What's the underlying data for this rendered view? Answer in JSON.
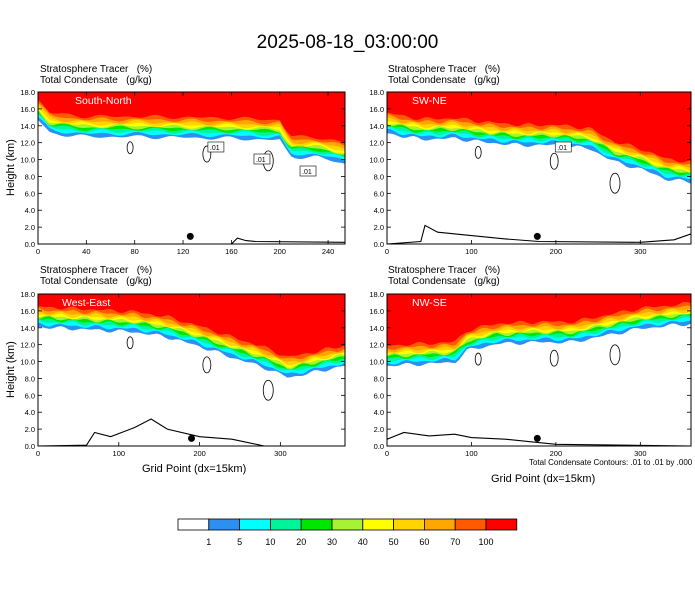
{
  "title": "2025-08-18_03:00:00",
  "colors": {
    "levels": [
      "#ffffff",
      "#2d8ff0",
      "#00ffff",
      "#00f59a",
      "#00e600",
      "#a7f232",
      "#ffff00",
      "#ffd400",
      "#ffa600",
      "#ff5a00",
      "#ff0000"
    ],
    "contour": "#000000"
  },
  "colorbar": {
    "labels": [
      "1",
      "5",
      "10",
      "20",
      "30",
      "40",
      "50",
      "60",
      "70",
      "100"
    ]
  },
  "footnote": "Total Condensate Contours: .01 to .01 by .000",
  "chart_data": [
    {
      "type": "heatmap",
      "name": "South-North",
      "label": "South-North",
      "header": [
        "Stratosphere Tracer   (%)",
        "Total Condensate   (g/kg)"
      ],
      "ylabel": "Height (km)",
      "xlabel": "",
      "xlim": [
        0,
        254
      ],
      "ylim": [
        0,
        18
      ],
      "xticks": [
        0,
        40,
        80,
        120,
        160,
        200,
        240
      ],
      "yticks": [
        0.0,
        2.0,
        4.0,
        6.0,
        8.0,
        10.0,
        12.0,
        14.0,
        16.0,
        18.0
      ],
      "tracer_base_km": [
        [
          0,
          15.6
        ],
        [
          10,
          14.0
        ],
        [
          40,
          13.6
        ],
        [
          80,
          13.6
        ],
        [
          120,
          13.5
        ],
        [
          160,
          13.4
        ],
        [
          200,
          13.2
        ],
        [
          205,
          12.0
        ],
        [
          210,
          11.2
        ],
        [
          230,
          11.2
        ],
        [
          254,
          10.4
        ]
      ],
      "terrain_km": [
        [
          0,
          0.0
        ],
        [
          160,
          0.0
        ],
        [
          165,
          0.7
        ],
        [
          172,
          0.4
        ],
        [
          180,
          0.3
        ],
        [
          254,
          0.2
        ]
      ],
      "contour_labels": [
        ".01",
        ".01",
        ".01"
      ],
      "marker_x": 126
    },
    {
      "type": "heatmap",
      "name": "SW-NE",
      "label": "SW-NE",
      "header": [
        "Stratosphere Tracer   (%)",
        "Total Condensate   (g/kg)"
      ],
      "ylabel": "",
      "xlabel": "",
      "xlim": [
        0,
        360
      ],
      "ylim": [
        0,
        18
      ],
      "xticks": [
        0,
        100,
        200,
        300
      ],
      "yticks": [
        0.0,
        2.0,
        4.0,
        6.0,
        8.0,
        10.0,
        12.0,
        14.0,
        16.0,
        18.0
      ],
      "tracer_base_km": [
        [
          0,
          14.0
        ],
        [
          40,
          13.3
        ],
        [
          80,
          13.4
        ],
        [
          120,
          12.9
        ],
        [
          160,
          12.6
        ],
        [
          200,
          12.6
        ],
        [
          240,
          12.2
        ],
        [
          270,
          10.6
        ],
        [
          300,
          9.8
        ],
        [
          330,
          8.6
        ],
        [
          360,
          8.2
        ]
      ],
      "terrain_km": [
        [
          0,
          0.0
        ],
        [
          40,
          0.3
        ],
        [
          45,
          2.2
        ],
        [
          60,
          1.4
        ],
        [
          100,
          1.0
        ],
        [
          140,
          0.6
        ],
        [
          180,
          0.3
        ],
        [
          300,
          0.2
        ],
        [
          340,
          0.5
        ],
        [
          360,
          1.2
        ]
      ],
      "contour_labels": [
        ".01"
      ],
      "marker_x": 178
    },
    {
      "type": "heatmap",
      "name": "West-East",
      "label": "West-East",
      "header": [
        "Stratosphere Tracer   (%)",
        "Total Condensate   (g/kg)"
      ],
      "ylabel": "Height (km)",
      "xlabel": "Grid Point (dx=15km)",
      "xlim": [
        0,
        380
      ],
      "ylim": [
        0,
        18
      ],
      "xticks": [
        0,
        100,
        200,
        300
      ],
      "yticks": [
        0.0,
        2.0,
        4.0,
        6.0,
        8.0,
        10.0,
        12.0,
        14.0,
        16.0,
        18.0
      ],
      "tracer_base_km": [
        [
          0,
          15.0
        ],
        [
          40,
          14.8
        ],
        [
          80,
          14.6
        ],
        [
          120,
          14.4
        ],
        [
          160,
          13.8
        ],
        [
          200,
          12.7
        ],
        [
          240,
          11.4
        ],
        [
          280,
          10.2
        ],
        [
          310,
          9.0
        ],
        [
          340,
          9.6
        ],
        [
          380,
          10.4
        ]
      ],
      "terrain_km": [
        [
          0,
          0.0
        ],
        [
          60,
          0.1
        ],
        [
          70,
          1.6
        ],
        [
          90,
          1.1
        ],
        [
          120,
          2.2
        ],
        [
          140,
          3.2
        ],
        [
          160,
          2.0
        ],
        [
          200,
          1.1
        ],
        [
          240,
          0.8
        ],
        [
          280,
          0.0
        ],
        [
          380,
          0.0
        ]
      ],
      "contour_labels": [],
      "marker_x": 190
    },
    {
      "type": "heatmap",
      "name": "NW-SE",
      "label": "NW-SE",
      "header": [
        "Stratosphere Tracer   (%)",
        "Total Condensate   (g/kg)"
      ],
      "ylabel": "",
      "xlabel": "Grid Point (dx=15km)",
      "xlim": [
        0,
        360
      ],
      "ylim": [
        0,
        18
      ],
      "xticks": [
        0,
        100,
        200,
        300
      ],
      "yticks": [
        0.0,
        2.0,
        4.0,
        6.0,
        8.0,
        10.0,
        12.0,
        14.0,
        16.0,
        18.0
      ],
      "tracer_base_km": [
        [
          0,
          10.4
        ],
        [
          40,
          10.6
        ],
        [
          80,
          10.8
        ],
        [
          95,
          12.2
        ],
        [
          130,
          13.0
        ],
        [
          180,
          13.2
        ],
        [
          220,
          13.2
        ],
        [
          260,
          14.0
        ],
        [
          300,
          14.8
        ],
        [
          360,
          15.4
        ]
      ],
      "terrain_km": [
        [
          0,
          0.8
        ],
        [
          20,
          1.6
        ],
        [
          50,
          1.2
        ],
        [
          80,
          1.4
        ],
        [
          100,
          1.0
        ],
        [
          140,
          0.8
        ],
        [
          200,
          0.2
        ],
        [
          360,
          0.0
        ]
      ],
      "contour_labels": [],
      "marker_x": 178
    }
  ]
}
